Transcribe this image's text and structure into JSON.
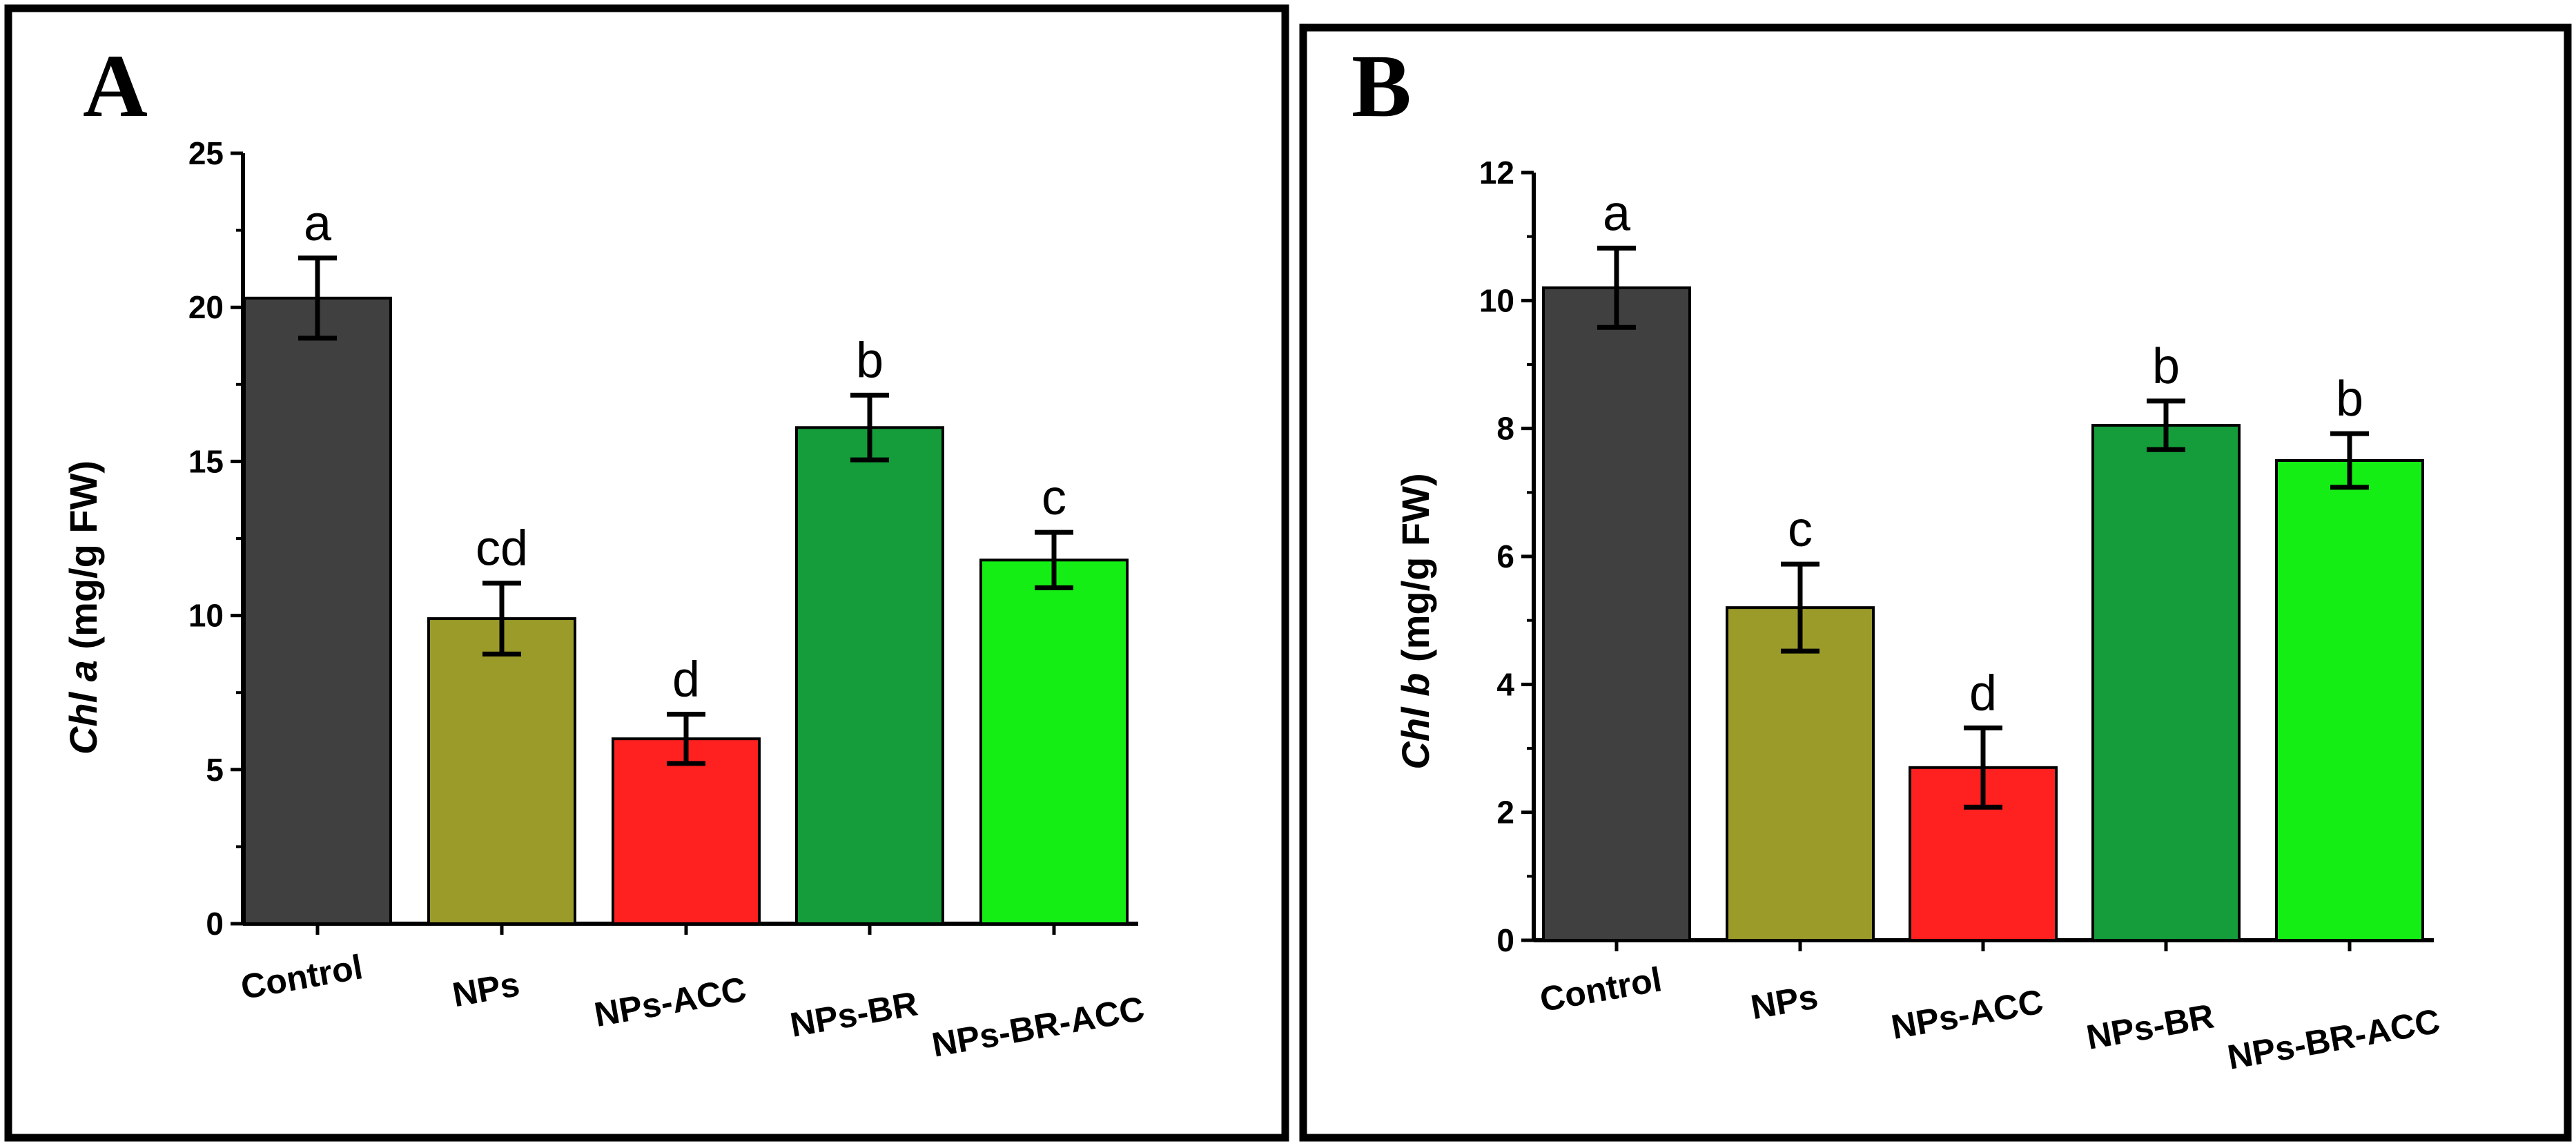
{
  "chart_data": [
    {
      "panel": "A",
      "type": "bar",
      "categories": [
        "Control",
        "NPs",
        "NPs-ACC",
        "NPs-BR",
        "NPs-BR-ACC"
      ],
      "values": [
        20.3,
        9.9,
        6.0,
        16.1,
        11.8
      ],
      "errors": [
        1.3,
        1.15,
        0.8,
        1.05,
        0.9
      ],
      "significance": [
        "a",
        "cd",
        "d",
        "b",
        "c"
      ],
      "colors": [
        "#404040",
        "#9b9b2a",
        "#ff2020",
        "#149d3a",
        "#15ee15"
      ],
      "ylabel_italic": "Chl a",
      "ylabel_rest": " (mg/g FW)",
      "ylim": [
        0,
        25
      ],
      "yticks": [
        0,
        5,
        10,
        15,
        20,
        25
      ],
      "ytick_labels": [
        "0",
        "5",
        "10",
        "15",
        "20",
        "25"
      ],
      "xlabel": "",
      "grid": false
    },
    {
      "panel": "B",
      "type": "bar",
      "categories": [
        "Control",
        "NPs",
        "NPs-ACC",
        "NPs-BR",
        "NPs-BR-ACC"
      ],
      "values": [
        10.2,
        5.2,
        2.7,
        8.05,
        7.5
      ],
      "errors": [
        0.62,
        0.68,
        0.62,
        0.38,
        0.42
      ],
      "significance": [
        "a",
        "c",
        "d",
        "b",
        "b"
      ],
      "colors": [
        "#404040",
        "#9b9b2a",
        "#ff2020",
        "#149d3a",
        "#15ee15"
      ],
      "ylabel_italic": "Chl b",
      "ylabel_rest": " (mg/g FW)",
      "ylim": [
        0,
        12
      ],
      "yticks": [
        0,
        2,
        4,
        6,
        8,
        10,
        12
      ],
      "ytick_labels": [
        "0",
        "2",
        "4",
        "6",
        "8",
        "10",
        "12"
      ],
      "xlabel": "",
      "grid": false
    }
  ]
}
